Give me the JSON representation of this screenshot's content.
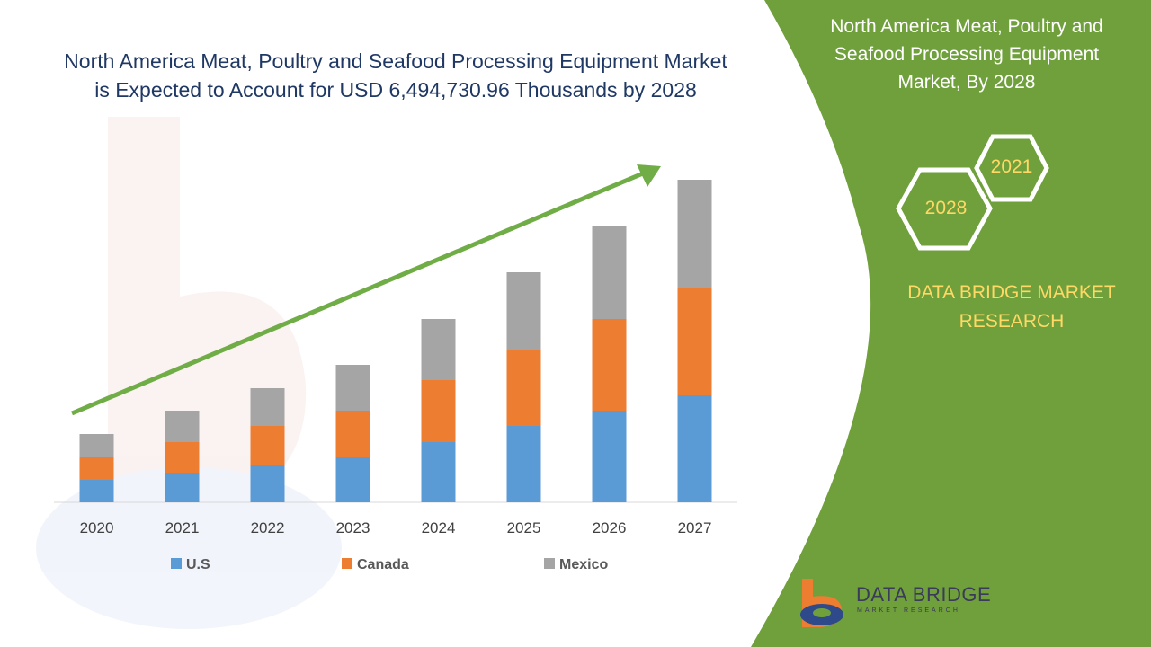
{
  "colors": {
    "us": "#5b9bd5",
    "canada": "#ed7d31",
    "mexico": "#a5a5a5",
    "arrow": "#70ad47",
    "panel": "#70a03c",
    "title": "#1f3864",
    "accent_text": "#ffd966"
  },
  "chart_data": {
    "type": "bar",
    "stacked": true,
    "title": "North America Meat, Poultry and Seafood Processing Equipment Market is Expected to Account for USD 6,494,730.96 Thousands by 2028",
    "categories": [
      "2020",
      "2021",
      "2022",
      "2023",
      "2024",
      "2025",
      "2026",
      "2027"
    ],
    "series": [
      {
        "name": "U.S",
        "values": [
          25,
          33,
          42,
          50,
          67,
          85,
          102,
          119
        ]
      },
      {
        "name": "Canada",
        "values": [
          25,
          34,
          43,
          52,
          69,
          85,
          102,
          120
        ]
      },
      {
        "name": "Mexico",
        "values": [
          26,
          35,
          42,
          51,
          68,
          86,
          103,
          120
        ]
      }
    ],
    "ylim": [
      0,
      360
    ],
    "grid": false,
    "legend": "bottom",
    "trend_arrow": true
  },
  "panel": {
    "title": "North America Meat, Poultry and Seafood Processing Equipment Market, By 2028",
    "hex_a": "2028",
    "hex_b": "2021",
    "tagline": "DATA BRIDGE MARKET RESEARCH"
  },
  "brand": {
    "name": "DATA BRIDGE",
    "sub": "MARKET RESEARCH"
  }
}
